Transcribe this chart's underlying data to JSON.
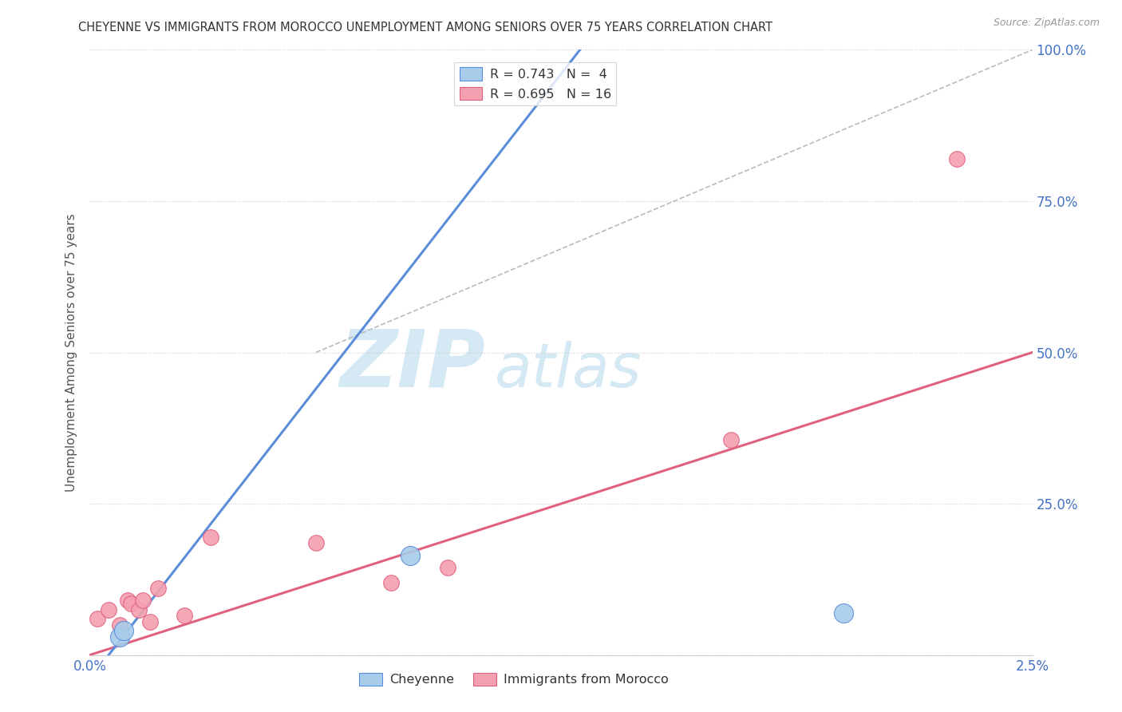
{
  "title": "CHEYENNE VS IMMIGRANTS FROM MOROCCO UNEMPLOYMENT AMONG SENIORS OVER 75 YEARS CORRELATION CHART",
  "source": "Source: ZipAtlas.com",
  "ylabel": "Unemployment Among Seniors over 75 years",
  "xmin": 0.0,
  "xmax": 0.025,
  "ymin": 0.0,
  "ymax": 1.0,
  "xticks": [
    0.0,
    0.005,
    0.01,
    0.015,
    0.02,
    0.025
  ],
  "xticklabels": [
    "0.0%",
    "",
    "",
    "",
    "",
    "2.5%"
  ],
  "yticks": [
    0.0,
    0.25,
    0.5,
    0.75,
    1.0
  ],
  "yticklabels_right": [
    "",
    "25.0%",
    "50.0%",
    "75.0%",
    "100.0%"
  ],
  "blue_R": 0.743,
  "blue_N": 4,
  "pink_R": 0.695,
  "pink_N": 16,
  "cheyenne_points": [
    [
      0.0008,
      0.03
    ],
    [
      0.0009,
      0.04
    ],
    [
      0.0085,
      0.165
    ],
    [
      0.02,
      0.07
    ]
  ],
  "morocco_points": [
    [
      0.0002,
      0.06
    ],
    [
      0.0005,
      0.075
    ],
    [
      0.0008,
      0.05
    ],
    [
      0.001,
      0.09
    ],
    [
      0.0011,
      0.085
    ],
    [
      0.0013,
      0.075
    ],
    [
      0.0014,
      0.09
    ],
    [
      0.0016,
      0.055
    ],
    [
      0.0018,
      0.11
    ],
    [
      0.0025,
      0.065
    ],
    [
      0.0032,
      0.195
    ],
    [
      0.006,
      0.185
    ],
    [
      0.008,
      0.12
    ],
    [
      0.0095,
      0.145
    ],
    [
      0.017,
      0.355
    ],
    [
      0.023,
      0.82
    ]
  ],
  "blue_line_x": [
    0.0005,
    0.013
  ],
  "blue_line_y": [
    0.0,
    1.0
  ],
  "pink_line_x": [
    0.0,
    0.025
  ],
  "pink_line_y": [
    0.0,
    0.5
  ],
  "diag_line_x": [
    0.006,
    0.025
  ],
  "diag_line_y": [
    0.5,
    1.0
  ],
  "blue_color": "#A8CCEA",
  "blue_line_color": "#5B8DD9",
  "pink_color": "#F4A0B0",
  "pink_line_color": "#E06080",
  "diag_line_color": "#BBBBBB",
  "background_color": "#FFFFFF",
  "grid_color": "#CCCCCC",
  "title_color": "#333333",
  "axis_label_color": "#555555",
  "tick_color_x": "#4472C4",
  "tick_color_y_right": "#4472C4",
  "watermark_color": "#D5E9F5",
  "watermark_text": "ZIPatlas",
  "legend_label1": "R = 0.743   N =  4",
  "legend_label2": "R = 0.695   N = 16",
  "legend_bottom_label1": "Cheyenne",
  "legend_bottom_label2": "Immigrants from Morocco",
  "bubble_size_blue": 300,
  "bubble_size_pink": 200
}
